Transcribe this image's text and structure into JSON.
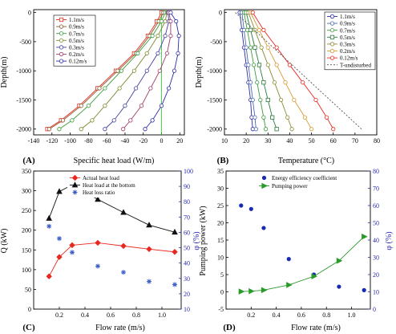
{
  "panels": {
    "A": {
      "letter": "(A)",
      "xlabel": "Specific heat load (W/m)",
      "ylabel": "Depth(m)",
      "xticks": [
        -140,
        -120,
        -100,
        -80,
        -60,
        -40,
        -20,
        0,
        20
      ],
      "yticks": [
        0,
        -500,
        -1000,
        -1500,
        -2000
      ],
      "legend": [
        "1.1m/s",
        "0.9m/s",
        "0.7m/s",
        "0.5m/s",
        "0.3m/s",
        "0.2m/s",
        "0.12m/s"
      ]
    },
    "B": {
      "letter": "(B)",
      "xlabel": "Temperature (°C)",
      "ylabel": "Depth(m)",
      "xticks": [
        10,
        20,
        30,
        40,
        50,
        60,
        70,
        80
      ],
      "yticks": [
        0,
        -500,
        -1000,
        -1500,
        -2000
      ],
      "legend": [
        "1.1m/s",
        "0.9m/s",
        "0.7m/s",
        "0.5m/s",
        "0.3m/s",
        "0.2m/s",
        "0.12m/s",
        "T-undisturbed"
      ]
    },
    "C": {
      "letter": "(C)",
      "xlabel": "Flow rate (m/s)",
      "ylabel_left": "Q (kW)",
      "ylabel_right": "φ (%)",
      "xticks": [
        "0.2",
        "0.4",
        "0.6",
        "0.8",
        "1.0"
      ],
      "yticks_left": [
        0,
        50,
        100,
        150,
        200,
        250,
        300,
        350
      ],
      "yticks_right": [
        10,
        20,
        30,
        40,
        50,
        60,
        70,
        80,
        90,
        100
      ],
      "legend": [
        "Actual heat load",
        "Heat load at the bottom",
        "Heat loss ratio"
      ]
    },
    "D": {
      "letter": "(D)",
      "xlabel": "Flow rate (m/s)",
      "ylabel_left": "Pumping power (kW)",
      "ylabel_right": "φ (%)",
      "xticks": [
        "0.2",
        "0.4",
        "0.6",
        "0.8",
        "1.0"
      ],
      "yticks_left": [
        -5,
        0,
        5,
        10,
        15,
        20,
        25,
        30,
        35
      ],
      "yticks_right": [
        0,
        10,
        20,
        30,
        40,
        50,
        60,
        70,
        80
      ],
      "legend": [
        "Energy efficiency coefficient",
        "Pumping power"
      ]
    }
  },
  "chart_data": [
    {
      "panel": "A",
      "type": "line",
      "xlabel": "Specific heat load (W/m)",
      "ylabel": "Depth(m)",
      "xlim": [
        -140,
        25
      ],
      "ylim": [
        -2100,
        50
      ],
      "series": [
        {
          "name": "1.1m/s",
          "color": "#e8281e",
          "marker": "square",
          "x": [
            -125,
            -110,
            -90,
            -70,
            -50,
            -30,
            -15,
            -5,
            0
          ],
          "y": [
            -2000,
            -1850,
            -1600,
            -1300,
            -1000,
            -700,
            -400,
            -150,
            0
          ]
        },
        {
          "name": "0.9m/s",
          "color": "#8a5a2a",
          "marker": "circle",
          "x": [
            -123,
            -108,
            -88,
            -68,
            -48,
            -28,
            -13,
            -3,
            2
          ],
          "y": [
            -2000,
            -1850,
            -1600,
            -1300,
            -1000,
            -700,
            -400,
            -150,
            0
          ]
        },
        {
          "name": "0.7m/s",
          "color": "#3a9a3a",
          "marker": "circle",
          "x": [
            -112,
            -98,
            -80,
            -62,
            -44,
            -26,
            -10,
            0,
            4
          ],
          "y": [
            -2000,
            -1850,
            -1600,
            -1300,
            -1000,
            -700,
            -400,
            -150,
            0
          ]
        },
        {
          "name": "0.5m/s",
          "color": "#7a8a30",
          "marker": "circle",
          "x": [
            -88,
            -76,
            -62,
            -46,
            -30,
            -16,
            -4,
            4,
            6
          ],
          "y": [
            -2000,
            -1850,
            -1600,
            -1300,
            -1000,
            -700,
            -400,
            -150,
            0
          ]
        },
        {
          "name": "0.3m/s",
          "color": "#4040a0",
          "marker": "circle",
          "x": [
            -62,
            -52,
            -40,
            -28,
            -16,
            -4,
            4,
            8,
            7
          ],
          "y": [
            -2000,
            -1850,
            -1600,
            -1300,
            -1000,
            -700,
            -400,
            -150,
            0
          ]
        },
        {
          "name": "0.2m/s",
          "color": "#a03a6a",
          "marker": "circle",
          "x": [
            -42,
            -34,
            -22,
            -12,
            -2,
            6,
            10,
            10,
            8
          ],
          "y": [
            -2000,
            -1850,
            -1600,
            -1300,
            -1000,
            -700,
            -400,
            -150,
            0
          ]
        },
        {
          "name": "0.12m/s",
          "color": "#2a2aaa",
          "marker": "circle",
          "x": [
            -18,
            -10,
            0,
            8,
            14,
            18,
            19,
            16,
            10
          ],
          "y": [
            -2000,
            -1850,
            -1600,
            -1300,
            -1000,
            -700,
            -400,
            -150,
            0
          ]
        }
      ]
    },
    {
      "panel": "B",
      "type": "line",
      "xlabel": "Temperature (°C)",
      "ylabel": "Depth(m)",
      "xlim": [
        10,
        80
      ],
      "ylim": [
        -2100,
        50
      ],
      "series": [
        {
          "name": "1.1m/s",
          "color": "#2a2aaa",
          "marker": "circle",
          "x": [
            17,
            18,
            19,
            20,
            21,
            22,
            22.5,
            23
          ],
          "y": [
            0,
            -300,
            -600,
            -900,
            -1200,
            -1500,
            -1800,
            -2000
          ]
        },
        {
          "name": "0.9m/s",
          "color": "#4a6aaa",
          "marker": "circle",
          "x": [
            18,
            19,
            20,
            21,
            22,
            23,
            24,
            24.5
          ],
          "y": [
            0,
            -300,
            -600,
            -900,
            -1200,
            -1500,
            -1800,
            -2000
          ]
        },
        {
          "name": "0.7m/s",
          "color": "#3a9a3a",
          "marker": "circle",
          "x": [
            19,
            20.5,
            22,
            23.5,
            25,
            26.5,
            28,
            29
          ],
          "y": [
            0,
            -300,
            -600,
            -900,
            -1200,
            -1500,
            -1800,
            -2000
          ]
        },
        {
          "name": "0.5m/s",
          "color": "#2a7a3a",
          "marker": "square",
          "x": [
            20,
            22,
            24,
            26,
            28,
            30,
            32,
            34
          ],
          "y": [
            0,
            -300,
            -600,
            -900,
            -1200,
            -1500,
            -1800,
            -2000
          ]
        },
        {
          "name": "0.3m/s",
          "color": "#8a8a30",
          "marker": "circle",
          "x": [
            21,
            24,
            27,
            30,
            33,
            36,
            39,
            41
          ],
          "y": [
            0,
            -300,
            -600,
            -900,
            -1200,
            -1500,
            -1800,
            -2000
          ]
        },
        {
          "name": "0.2m/s",
          "color": "#d89a30",
          "marker": "circle",
          "x": [
            22,
            26,
            30,
            34,
            38,
            42,
            47,
            50
          ],
          "y": [
            0,
            -300,
            -600,
            -900,
            -1200,
            -1500,
            -1800,
            -2000
          ]
        },
        {
          "name": "0.12m/s",
          "color": "#e8281e",
          "marker": "circle",
          "x": [
            23,
            28,
            34,
            40,
            46,
            52,
            57,
            60
          ],
          "y": [
            0,
            -300,
            -600,
            -900,
            -1200,
            -1500,
            -1800,
            -2000
          ]
        },
        {
          "name": "T-undisturbed",
          "color": "#555555",
          "marker": "none",
          "dash": true,
          "x": [
            15,
            73
          ],
          "y": [
            0,
            -2000
          ]
        }
      ]
    },
    {
      "panel": "C",
      "type": "line",
      "xlabel": "Flow rate (m/s)",
      "ylabel": "Q (kW)",
      "xlim": [
        0,
        1.15
      ],
      "ylim": [
        0,
        350
      ],
      "y2lim": [
        10,
        100
      ],
      "series": [
        {
          "name": "Actual heat load",
          "color": "#e8281e",
          "marker": "diamond",
          "axis": "left",
          "x": [
            0.12,
            0.2,
            0.3,
            0.5,
            0.7,
            0.9,
            1.1
          ],
          "y": [
            83,
            132,
            162,
            168,
            160,
            152,
            145
          ]
        },
        {
          "name": "Heat load at the bottom",
          "color": "#111111",
          "marker": "triangle",
          "axis": "left",
          "x": [
            0.12,
            0.2,
            0.3,
            0.5,
            0.7,
            0.9,
            1.1
          ],
          "y": [
            230,
            298,
            315,
            278,
            245,
            213,
            195
          ]
        },
        {
          "name": "Heat loss ratio",
          "color": "#3a5ac8",
          "marker": "star",
          "axis": "right",
          "line": false,
          "x": [
            0.12,
            0.2,
            0.3,
            0.5,
            0.7,
            0.9,
            1.1
          ],
          "y": [
            64,
            56,
            47,
            38,
            34,
            28,
            26
          ]
        }
      ]
    },
    {
      "panel": "D",
      "type": "line",
      "xlabel": "Flow rate (m/s)",
      "ylabel": "Pumping power (kW)",
      "xlim": [
        0,
        1.15
      ],
      "ylim": [
        -5,
        35
      ],
      "y2lim": [
        0,
        80
      ],
      "series": [
        {
          "name": "Energy efficiency coefficient",
          "color": "#1a2ab0",
          "marker": "circle",
          "axis": "right",
          "line": false,
          "x": [
            0.12,
            0.2,
            0.3,
            0.5,
            0.7,
            0.9,
            1.1
          ],
          "y": [
            60,
            58,
            47,
            29,
            20,
            13,
            11
          ]
        },
        {
          "name": "Pumping power",
          "color": "#2a9a2a",
          "marker": "triangle-right",
          "axis": "left",
          "x": [
            0.12,
            0.2,
            0.3,
            0.5,
            0.7,
            0.9,
            1.1
          ],
          "y": [
            0.1,
            0.2,
            0.5,
            2,
            4.5,
            9,
            16
          ]
        }
      ]
    }
  ]
}
